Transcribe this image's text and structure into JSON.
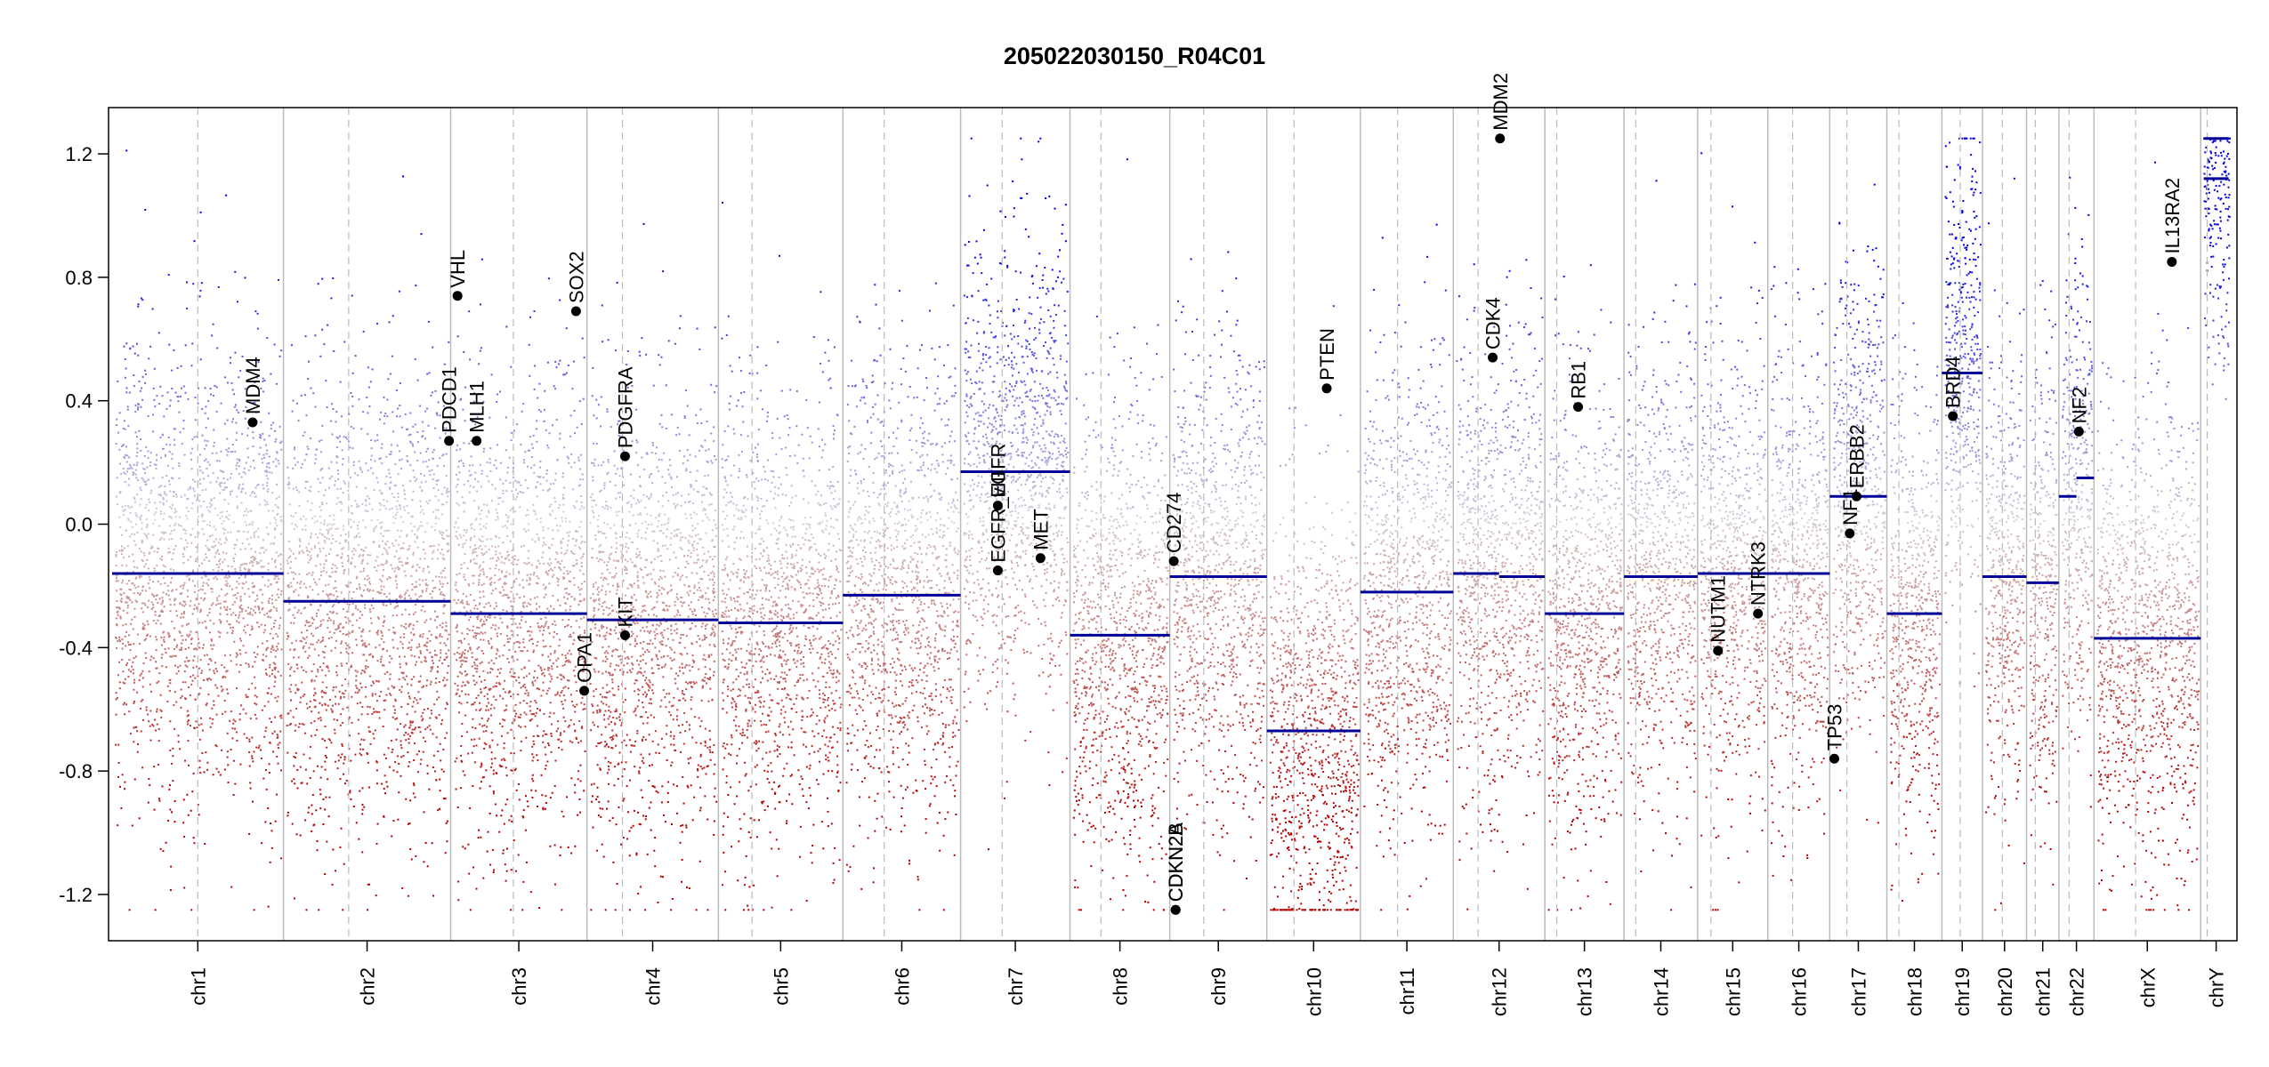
{
  "chart_data": {
    "type": "scatter",
    "title": "205022030150_R04C01",
    "xlabel": "",
    "ylabel": "",
    "ylim": [
      -1.35,
      1.35
    ],
    "y_ticks": [
      -1.2,
      -0.8,
      -0.4,
      0.0,
      0.4,
      0.8,
      1.2
    ],
    "y_tick_labels": [
      "-1.2",
      "-0.8",
      "-0.4",
      "0.0",
      "0.4",
      "0.8",
      "1.2"
    ],
    "colors": {
      "gain": "#0000cc",
      "loss": "#cc0000",
      "segment": "#000099",
      "boundary": "#bbbbbb",
      "centromere": "#bbbbbb"
    },
    "chromosomes": [
      {
        "name": "chr1",
        "size_mb": 249,
        "centromere_frac": 0.5,
        "segments": [
          {
            "from": 0,
            "to": 1,
            "value": -0.16
          }
        ]
      },
      {
        "name": "chr2",
        "size_mb": 243,
        "centromere_frac": 0.39,
        "segments": [
          {
            "from": 0,
            "to": 1,
            "value": -0.25
          }
        ]
      },
      {
        "name": "chr3",
        "size_mb": 198,
        "centromere_frac": 0.46,
        "segments": [
          {
            "from": 0,
            "to": 1,
            "value": -0.29
          }
        ]
      },
      {
        "name": "chr4",
        "size_mb": 191,
        "centromere_frac": 0.27,
        "segments": [
          {
            "from": 0,
            "to": 1,
            "value": -0.31
          }
        ]
      },
      {
        "name": "chr5",
        "size_mb": 181,
        "centromere_frac": 0.27,
        "segments": [
          {
            "from": 0,
            "to": 1,
            "value": -0.32
          }
        ]
      },
      {
        "name": "chr6",
        "size_mb": 171,
        "centromere_frac": 0.35,
        "segments": [
          {
            "from": 0,
            "to": 1,
            "value": -0.23
          }
        ]
      },
      {
        "name": "chr7",
        "size_mb": 159,
        "centromere_frac": 0.38,
        "segments": [
          {
            "from": 0,
            "to": 1,
            "value": 0.17
          }
        ]
      },
      {
        "name": "chr8",
        "size_mb": 145,
        "centromere_frac": 0.31,
        "segments": [
          {
            "from": 0,
            "to": 1,
            "value": -0.36
          }
        ]
      },
      {
        "name": "chr9",
        "size_mb": 141,
        "centromere_frac": 0.35,
        "segments": [
          {
            "from": 0,
            "to": 1,
            "value": -0.17
          }
        ]
      },
      {
        "name": "chr10",
        "size_mb": 136,
        "centromere_frac": 0.29,
        "segments": [
          {
            "from": 0,
            "to": 1,
            "value": -0.67
          }
        ]
      },
      {
        "name": "chr11",
        "size_mb": 135,
        "centromere_frac": 0.4,
        "segments": [
          {
            "from": 0,
            "to": 1,
            "value": -0.22
          }
        ]
      },
      {
        "name": "chr12",
        "size_mb": 133,
        "centromere_frac": 0.27,
        "segments": [
          {
            "from": 0,
            "to": 0.5,
            "value": -0.16
          },
          {
            "from": 0.5,
            "to": 1,
            "value": -0.17
          }
        ]
      },
      {
        "name": "chr13",
        "size_mb": 115,
        "centromere_frac": 0.15,
        "segments": [
          {
            "from": 0,
            "to": 1,
            "value": -0.29
          }
        ]
      },
      {
        "name": "chr14",
        "size_mb": 107,
        "centromere_frac": 0.16,
        "segments": [
          {
            "from": 0,
            "to": 1,
            "value": -0.17
          }
        ]
      },
      {
        "name": "chr15",
        "size_mb": 102,
        "centromere_frac": 0.19,
        "segments": [
          {
            "from": 0,
            "to": 1,
            "value": -0.16
          }
        ]
      },
      {
        "name": "chr16",
        "size_mb": 90,
        "centromere_frac": 0.4,
        "segments": [
          {
            "from": 0,
            "to": 1,
            "value": -0.16
          }
        ]
      },
      {
        "name": "chr17",
        "size_mb": 83,
        "centromere_frac": 0.3,
        "segments": [
          {
            "from": 0,
            "to": 1,
            "value": 0.09
          }
        ]
      },
      {
        "name": "chr18",
        "size_mb": 80,
        "centromere_frac": 0.22,
        "segments": [
          {
            "from": 0,
            "to": 1,
            "value": -0.29
          }
        ]
      },
      {
        "name": "chr19",
        "size_mb": 59,
        "centromere_frac": 0.45,
        "segments": [
          {
            "from": 0,
            "to": 1,
            "value": 0.49
          }
        ]
      },
      {
        "name": "chr20",
        "size_mb": 64,
        "centromere_frac": 0.45,
        "segments": [
          {
            "from": 0,
            "to": 1,
            "value": -0.17
          }
        ]
      },
      {
        "name": "chr21",
        "size_mb": 47,
        "centromere_frac": 0.27,
        "segments": [
          {
            "from": 0,
            "to": 1,
            "value": -0.19
          }
        ]
      },
      {
        "name": "chr22",
        "size_mb": 51,
        "centromere_frac": 0.29,
        "segments": [
          {
            "from": 0,
            "to": 0.5,
            "value": 0.09
          },
          {
            "from": 0.5,
            "to": 1,
            "value": 0.15
          }
        ]
      },
      {
        "name": "chrX",
        "size_mb": 155,
        "centromere_frac": 0.39,
        "segments": [
          {
            "from": 0,
            "to": 1,
            "value": -0.37
          }
        ]
      },
      {
        "name": "chrY",
        "size_mb": 45,
        "centromere_frac": 0.21,
        "segments": [
          {
            "from": 0.1,
            "to": 0.9,
            "value": 1.25
          },
          {
            "from": 0.1,
            "to": 0.9,
            "value": 1.12
          }
        ]
      }
    ],
    "genes": [
      {
        "name": "MDM4",
        "chr": "chr1",
        "pos": 0.82,
        "value": 0.33
      },
      {
        "name": "PDCD1",
        "chr": "chr2",
        "pos": 0.99,
        "value": 0.27
      },
      {
        "name": "VHL",
        "chr": "chr3",
        "pos": 0.05,
        "value": 0.74
      },
      {
        "name": "MLH1",
        "chr": "chr3",
        "pos": 0.19,
        "value": 0.27
      },
      {
        "name": "SOX2",
        "chr": "chr3",
        "pos": 0.92,
        "value": 0.69
      },
      {
        "name": "OPA1",
        "chr": "chr3",
        "pos": 0.98,
        "value": -0.54
      },
      {
        "name": "PDGFRA",
        "chr": "chr4",
        "pos": 0.29,
        "value": 0.22
      },
      {
        "name": "KIT",
        "chr": "chr4",
        "pos": 0.29,
        "value": -0.36
      },
      {
        "name": "EGFR",
        "chr": "chr7",
        "pos": 0.34,
        "value": 0.06
      },
      {
        "name": "EGFR_vIII",
        "chr": "chr7",
        "pos": 0.34,
        "value": -0.15
      },
      {
        "name": "MET",
        "chr": "chr7",
        "pos": 0.73,
        "value": -0.11
      },
      {
        "name": "CD274",
        "chr": "chr8",
        "pos": 1.04,
        "value": -0.12
      },
      {
        "name": "CDKN2A",
        "chr": "chr9",
        "pos": 0.06,
        "value": -1.25
      },
      {
        "name": "CDKN2B",
        "chr": "chr9",
        "pos": 0.06,
        "value": -1.25
      },
      {
        "name": "PTEN",
        "chr": "chr10",
        "pos": 0.64,
        "value": 0.44
      },
      {
        "name": "CDK4",
        "chr": "chr12",
        "pos": 0.43,
        "value": 0.54
      },
      {
        "name": "MDM2",
        "chr": "chr12",
        "pos": 0.51,
        "value": 1.25
      },
      {
        "name": "RB1",
        "chr": "chr13",
        "pos": 0.42,
        "value": 0.38
      },
      {
        "name": "NUTM1",
        "chr": "chr15",
        "pos": 0.29,
        "value": -0.41
      },
      {
        "name": "NTRK3",
        "chr": "chr15",
        "pos": 0.86,
        "value": -0.29
      },
      {
        "name": "TP53",
        "chr": "chr17",
        "pos": 0.08,
        "value": -0.76
      },
      {
        "name": "NF1",
        "chr": "chr17",
        "pos": 0.35,
        "value": -0.03
      },
      {
        "name": "ERBB2",
        "chr": "chr17",
        "pos": 0.47,
        "value": 0.09
      },
      {
        "name": "BRD4",
        "chr": "chr19",
        "pos": 0.27,
        "value": 0.35
      },
      {
        "name": "NF2",
        "chr": "chr22",
        "pos": 0.57,
        "value": 0.3
      },
      {
        "name": "IL13RA2",
        "chr": "chrX",
        "pos": 0.73,
        "value": 0.85
      }
    ]
  }
}
